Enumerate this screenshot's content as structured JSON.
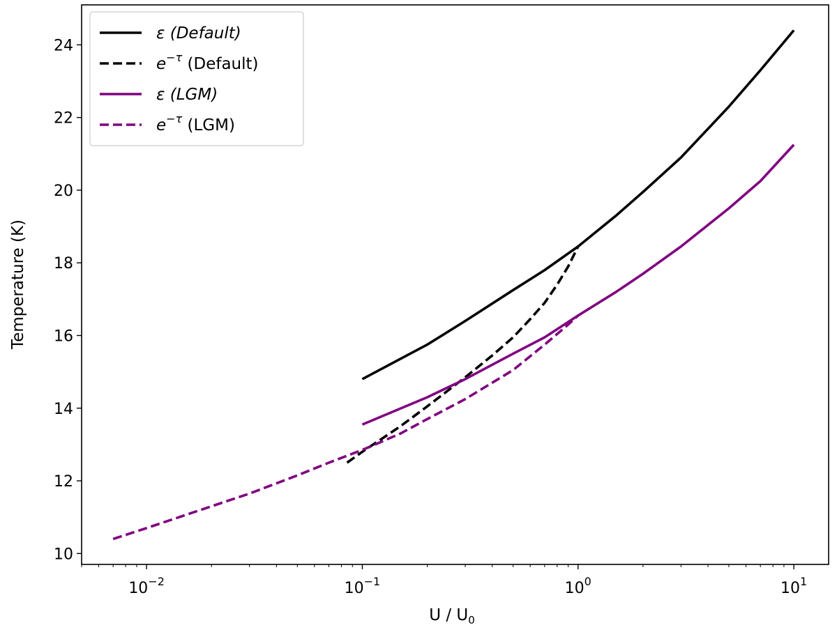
{
  "chart_data": {
    "type": "line",
    "xlabel": {
      "main": "U / U",
      "sub": "0"
    },
    "ylabel": "Temperature (K)",
    "xscale": "log",
    "xlim": [
      0.005,
      14.5
    ],
    "ylim": [
      9.7,
      25.1
    ],
    "grid": false,
    "legend_placement": "top-left",
    "x_ticks": [
      {
        "value": 0.01,
        "base": "10",
        "exp": "−2"
      },
      {
        "value": 0.1,
        "base": "10",
        "exp": "−1"
      },
      {
        "value": 1,
        "base": "10",
        "exp": "0"
      },
      {
        "value": 10,
        "base": "10",
        "exp": "1"
      }
    ],
    "y_ticks": [
      10,
      12,
      14,
      16,
      18,
      20,
      22,
      24
    ],
    "series": [
      {
        "name": "ε (Default)",
        "label_main": "ε (Default)",
        "label_sup": "",
        "label_rest": "",
        "color": "#000000",
        "dash": "solid",
        "x": [
          0.1,
          0.2,
          0.3,
          0.5,
          0.7,
          1.0,
          1.5,
          2.0,
          3.0,
          5.0,
          7.0,
          10.0
        ],
        "y": [
          14.8,
          15.75,
          16.4,
          17.25,
          17.8,
          18.45,
          19.3,
          19.95,
          20.9,
          22.3,
          23.3,
          24.4
        ]
      },
      {
        "name": "e−τ (Default)",
        "label_main": "e",
        "label_sup": "−τ",
        "label_rest": " (Default)",
        "color": "#000000",
        "dash": "dashed",
        "x": [
          0.085,
          0.1,
          0.15,
          0.2,
          0.3,
          0.4,
          0.5,
          0.6,
          0.7,
          0.8,
          0.9,
          1.0
        ],
        "y": [
          12.5,
          12.8,
          13.5,
          14.05,
          14.85,
          15.45,
          15.95,
          16.45,
          16.9,
          17.4,
          17.9,
          18.45
        ]
      },
      {
        "name": "ε (LGM)",
        "label_main": "ε (LGM)",
        "label_sup": "",
        "label_rest": "",
        "color": "#800080",
        "dash": "solid",
        "x": [
          0.1,
          0.2,
          0.3,
          0.5,
          0.7,
          1.0,
          1.5,
          2.0,
          3.0,
          5.0,
          7.0,
          10.0
        ],
        "y": [
          13.55,
          14.3,
          14.8,
          15.5,
          15.95,
          16.55,
          17.2,
          17.7,
          18.45,
          19.5,
          20.25,
          21.25
        ]
      },
      {
        "name": "e−τ (LGM)",
        "label_main": "e",
        "label_sup": "−τ",
        "label_rest": " (LGM)",
        "color": "#800080",
        "dash": "dashed",
        "x": [
          0.007,
          0.01,
          0.02,
          0.03,
          0.05,
          0.07,
          0.1,
          0.15,
          0.2,
          0.3,
          0.5,
          0.7,
          0.9,
          1.0
        ],
        "y": [
          10.4,
          10.7,
          11.3,
          11.65,
          12.15,
          12.5,
          12.85,
          13.3,
          13.7,
          14.25,
          15.05,
          15.75,
          16.3,
          16.55
        ]
      }
    ]
  }
}
